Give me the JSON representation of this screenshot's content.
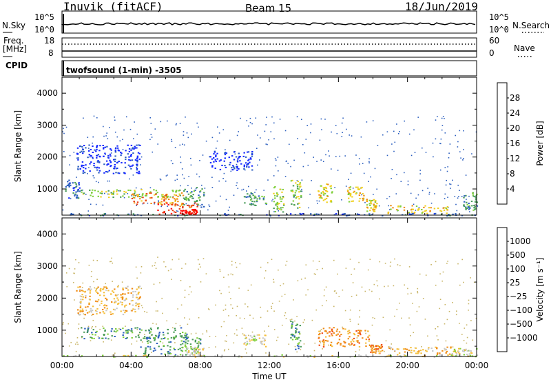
{
  "header": {
    "station": "Inuvik (fitACF)",
    "beam": "Beam 15",
    "date": "18/Jun/2019"
  },
  "top_panels": {
    "nsky_label": "N.Sky",
    "nsky_ticks": [
      "10^5",
      "10^0"
    ],
    "nsearch_label": "N.Search",
    "nsearch_ticks": [
      "10^5",
      "10^0"
    ],
    "freq_label": "Freq.",
    "freq_unit": "[MHz]",
    "freq_ticks": [
      "18",
      "8"
    ],
    "nave_label": "Nave",
    "nave_ticks": [
      "60",
      "0"
    ],
    "cpid_label": "CPID",
    "cpid_value": "twofsound (1-min) -3505"
  },
  "chart_data": [
    {
      "type": "heatmap",
      "name": "power-panel",
      "ylabel": "Slant Range [km]",
      "ylim": [
        180,
        4500
      ],
      "yticks": [
        1000,
        2000,
        3000,
        4000
      ],
      "xlim": [
        0,
        24
      ],
      "xticks": [
        "00:00",
        "04:00",
        "08:00",
        "12:00",
        "16:00",
        "20:00",
        "00:00"
      ],
      "colorbar": {
        "label": "Power [dB]",
        "ticks": [
          "4",
          "8",
          "12",
          "16",
          "20",
          "24",
          "28"
        ],
        "colors": [
          "#1428ff",
          "#2c5fbf",
          "#4a9c5a",
          "#7fcf3a",
          "#f0d020",
          "#f08c14",
          "#e83c14",
          "#ff0000"
        ]
      },
      "regions": [
        {
          "t0": 0.1,
          "t1": 1.0,
          "r0": 700,
          "r1": 1300,
          "level": 1
        },
        {
          "t0": 0.8,
          "t1": 4.5,
          "r0": 1500,
          "r1": 2400,
          "level": 0
        },
        {
          "t0": 1.0,
          "t1": 6.8,
          "r0": 750,
          "r1": 1000,
          "level": 3
        },
        {
          "t0": 4.0,
          "t1": 7.0,
          "r0": 500,
          "r1": 900,
          "level": 5
        },
        {
          "t0": 5.5,
          "t1": 7.8,
          "r0": 220,
          "r1": 600,
          "level": 6
        },
        {
          "t0": 6.8,
          "t1": 7.8,
          "r0": 220,
          "r1": 380,
          "level": 7
        },
        {
          "t0": 7.0,
          "t1": 8.2,
          "r0": 450,
          "r1": 1100,
          "level": 2
        },
        {
          "t0": 8.5,
          "t1": 11.0,
          "r0": 1600,
          "r1": 2200,
          "level": 0
        },
        {
          "t0": 10.5,
          "t1": 11.8,
          "r0": 500,
          "r1": 900,
          "level": 2
        },
        {
          "t0": 12.2,
          "t1": 12.8,
          "r0": 300,
          "r1": 1100,
          "level": 3
        },
        {
          "t0": 13.2,
          "t1": 13.8,
          "r0": 400,
          "r1": 1300,
          "level": 3
        },
        {
          "t0": 14.8,
          "t1": 15.6,
          "r0": 600,
          "r1": 1200,
          "level": 4
        },
        {
          "t0": 16.5,
          "t1": 17.5,
          "r0": 600,
          "r1": 1100,
          "level": 4
        },
        {
          "t0": 17.6,
          "t1": 18.2,
          "r0": 300,
          "r1": 700,
          "level": 4
        },
        {
          "t0": 18.8,
          "t1": 22.5,
          "r0": 250,
          "r1": 500,
          "level": 4
        },
        {
          "t0": 23.2,
          "t1": 24.0,
          "r0": 350,
          "r1": 900,
          "level": 2
        },
        {
          "t0": 0.0,
          "t1": 24.0,
          "r0": 180,
          "r1": 250,
          "level": 1
        }
      ]
    },
    {
      "type": "heatmap",
      "name": "velocity-panel",
      "ylabel": "Slant Range [km]",
      "xlabel": "Time UT",
      "ylim": [
        180,
        4500
      ],
      "yticks": [
        1000,
        2000,
        3000,
        4000
      ],
      "xlim": [
        0,
        24
      ],
      "xticks": [
        "00:00",
        "04:00",
        "08:00",
        "12:00",
        "16:00",
        "20:00",
        "00:00"
      ],
      "colorbar": {
        "label": "Velocity [m s⁻¹]",
        "ticks": [
          "1000",
          "500",
          "100",
          "25",
          "−25",
          "−100",
          "−500",
          "−1000"
        ],
        "colors": [
          "#ff0000",
          "#f04a14",
          "#f08c14",
          "#f5bf3c",
          "#c8c8c8",
          "#7fcf3a",
          "#4a9c5a",
          "#2c5fbf",
          "#1428ff"
        ]
      },
      "regions": [
        {
          "t0": 0.8,
          "t1": 4.5,
          "r0": 1500,
          "r1": 2400,
          "level": 3
        },
        {
          "t0": 1.0,
          "t1": 7.2,
          "r0": 750,
          "r1": 1100,
          "level": 6
        },
        {
          "t0": 4.5,
          "t1": 8.0,
          "r0": 250,
          "r1": 800,
          "level": 6
        },
        {
          "t0": 7.2,
          "t1": 8.2,
          "r0": 200,
          "r1": 500,
          "level": 4
        },
        {
          "t0": 10.5,
          "t1": 11.8,
          "r0": 500,
          "r1": 900,
          "level": 4
        },
        {
          "t0": 13.2,
          "t1": 13.8,
          "r0": 400,
          "r1": 1300,
          "level": 6
        },
        {
          "t0": 14.8,
          "t1": 17.8,
          "r0": 500,
          "r1": 1100,
          "level": 2
        },
        {
          "t0": 17.8,
          "t1": 18.5,
          "r0": 300,
          "r1": 600,
          "level": 2
        },
        {
          "t0": 18.8,
          "t1": 22.5,
          "r0": 230,
          "r1": 500,
          "level": 3
        },
        {
          "t0": 22.5,
          "t1": 24.0,
          "r0": 200,
          "r1": 450,
          "level": 4
        },
        {
          "t0": 0.0,
          "t1": 24.0,
          "r0": 180,
          "r1": 250,
          "level": 4
        }
      ]
    }
  ]
}
